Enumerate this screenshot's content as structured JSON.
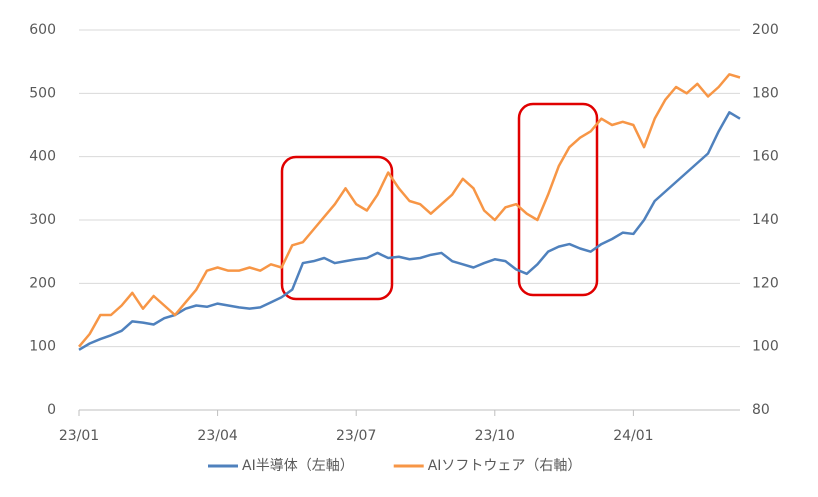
{
  "chart_data": {
    "type": "line",
    "categories": [
      "23/01",
      null,
      null,
      null,
      null,
      null,
      null,
      null,
      null,
      null,
      null,
      null,
      null,
      "23/04",
      null,
      null,
      null,
      null,
      null,
      null,
      null,
      null,
      null,
      null,
      null,
      null,
      "23/07",
      null,
      null,
      null,
      null,
      null,
      null,
      null,
      null,
      null,
      null,
      null,
      null,
      "23/10",
      null,
      null,
      null,
      null,
      null,
      null,
      null,
      null,
      null,
      null,
      null,
      null,
      "24/01",
      null,
      null,
      null,
      null,
      null,
      null,
      null,
      null,
      null,
      null
    ],
    "series": [
      {
        "name": "AI半導体（左軸）",
        "color": "#4f81bd",
        "axis": "y",
        "values": [
          95,
          105,
          112,
          118,
          125,
          140,
          138,
          135,
          145,
          150,
          160,
          165,
          163,
          168,
          165,
          162,
          160,
          162,
          170,
          178,
          190,
          232,
          235,
          240,
          232,
          235,
          238,
          240,
          248,
          240,
          242,
          238,
          240,
          245,
          248,
          235,
          230,
          225,
          232,
          238,
          235,
          222,
          215,
          230,
          250,
          258,
          262,
          255,
          250,
          262,
          270,
          280,
          278,
          300,
          330,
          345,
          360,
          375,
          390,
          405,
          440,
          470,
          460
        ]
      },
      {
        "name": "AIソフトウェア（右軸）",
        "color": "#f79646",
        "axis": "y2",
        "values": [
          100,
          104,
          110,
          110,
          113,
          117,
          112,
          116,
          113,
          110,
          114,
          118,
          124,
          125,
          124,
          124,
          125,
          124,
          126,
          125,
          132,
          133,
          137,
          141,
          145,
          150,
          145,
          143,
          148,
          155,
          150,
          146,
          145,
          142,
          145,
          148,
          153,
          150,
          143,
          140,
          144,
          145,
          142,
          140,
          148,
          157,
          163,
          166,
          168,
          172,
          170,
          171,
          170,
          163,
          172,
          178,
          182,
          180,
          183,
          179,
          182,
          186,
          185
        ]
      }
    ],
    "ylim": [
      0,
      600
    ],
    "yticks": [
      0,
      100,
      200,
      300,
      400,
      500,
      600
    ],
    "y2lim": [
      80,
      200
    ],
    "y2ticks": [
      80,
      100,
      120,
      140,
      160,
      180,
      200
    ],
    "grid": true,
    "legend": "bottom"
  }
}
